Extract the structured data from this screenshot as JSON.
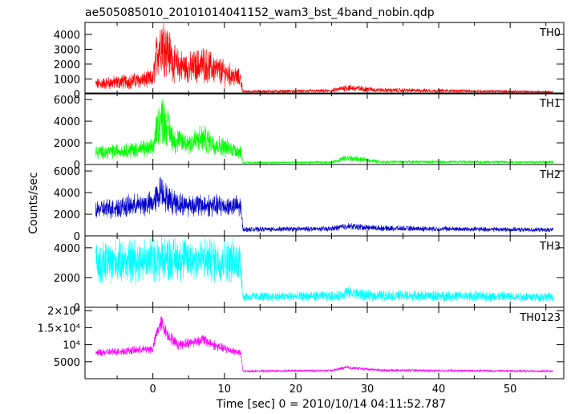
{
  "chart_data": {
    "type": "line",
    "title": "ae505085010_20101014041152_wam3_bst_4band_nobin.qdp",
    "xlabel": "Time [sec] 0 = 2010/10/14 04:11:52.787",
    "ylabel": "Counts/sec",
    "xlim": [
      -9.5,
      57.5
    ],
    "xticks": [
      0,
      10,
      20,
      30,
      40,
      50
    ],
    "xtick_labels": [
      "0",
      "10",
      "20",
      "30",
      "40",
      "50"
    ],
    "data_x_range": [
      -8,
      56
    ],
    "panels": [
      {
        "name": "TH0",
        "color": "#ff0000",
        "ylim": [
          0,
          4800
        ],
        "yticks": [
          0,
          1000,
          2000,
          3000,
          4000
        ],
        "ytick_labels": [
          "0",
          "1000",
          "2000",
          "3000",
          "4000"
        ],
        "profile": [
          [
            -8,
            650
          ],
          [
            0,
            1000
          ],
          [
            0.6,
            2800
          ],
          [
            1.2,
            3600
          ],
          [
            2.0,
            3000
          ],
          [
            3.0,
            2000
          ],
          [
            5.0,
            1700
          ],
          [
            7.0,
            2000
          ],
          [
            9.0,
            1600
          ],
          [
            12.3,
            1000
          ],
          [
            12.6,
            160
          ],
          [
            25,
            200
          ],
          [
            27,
            420
          ],
          [
            32,
            250
          ],
          [
            56,
            130
          ]
        ],
        "noise_fraction": 0.5
      },
      {
        "name": "TH1",
        "color": "#00ff00",
        "ylim": [
          0,
          6600
        ],
        "yticks": [
          0,
          2000,
          4000,
          6000
        ],
        "ytick_labels": [
          "0",
          "2000",
          "4000",
          "6000"
        ],
        "profile": [
          [
            -8,
            1100
          ],
          [
            0,
            1500
          ],
          [
            0.6,
            3500
          ],
          [
            1.2,
            4300
          ],
          [
            2.0,
            3500
          ],
          [
            3.0,
            2200
          ],
          [
            5.0,
            2000
          ],
          [
            7.0,
            2400
          ],
          [
            9.0,
            1800
          ],
          [
            12.3,
            1200
          ],
          [
            12.6,
            160
          ],
          [
            25,
            200
          ],
          [
            27,
            600
          ],
          [
            32,
            250
          ],
          [
            56,
            220
          ]
        ],
        "noise_fraction": 0.45
      },
      {
        "name": "TH2",
        "color": "#0000cc",
        "ylim": [
          0,
          6600
        ],
        "yticks": [
          0,
          2000,
          4000,
          6000
        ],
        "ytick_labels": [
          "0",
          "2000",
          "4000",
          "6000"
        ],
        "profile": [
          [
            -8,
            2400
          ],
          [
            0,
            3000
          ],
          [
            1.2,
            4300
          ],
          [
            2.0,
            3400
          ],
          [
            4.0,
            2900
          ],
          [
            12.3,
            2700
          ],
          [
            12.6,
            600
          ],
          [
            25,
            650
          ],
          [
            27,
            900
          ],
          [
            32,
            700
          ],
          [
            56,
            550
          ]
        ],
        "noise_fraction": 0.3
      },
      {
        "name": "TH3",
        "color": "#00ffff",
        "ylim": [
          0,
          4800
        ],
        "yticks": [
          0,
          2000,
          4000
        ],
        "ytick_labels": [
          "0",
          "2000",
          "4000"
        ],
        "profile": [
          [
            -8,
            3000
          ],
          [
            2.0,
            3300
          ],
          [
            12.3,
            3100
          ],
          [
            12.6,
            700
          ],
          [
            26,
            750
          ],
          [
            27,
            1000
          ],
          [
            30,
            800
          ],
          [
            56,
            700
          ]
        ],
        "noise_fraction": 0.38
      },
      {
        "name": "TH0123",
        "color": "#ff00ff",
        "ylim": [
          0,
          21000
        ],
        "yticks": [
          5000,
          10000,
          15000,
          20000
        ],
        "ytick_labels": [
          "5000",
          "10⁴",
          "1.5×10⁴",
          "2×10⁴"
        ],
        "profile": [
          [
            -8,
            7500
          ],
          [
            0,
            8800
          ],
          [
            0.6,
            14000
          ],
          [
            1.2,
            16500
          ],
          [
            2.0,
            13000
          ],
          [
            3.5,
            10000
          ],
          [
            5.0,
            10500
          ],
          [
            7.0,
            11500
          ],
          [
            9.0,
            9500
          ],
          [
            12.3,
            7500
          ],
          [
            12.6,
            2200
          ],
          [
            25,
            2400
          ],
          [
            27,
            3300
          ],
          [
            32,
            2500
          ],
          [
            56,
            2200
          ]
        ],
        "noise_fraction": 0.12
      }
    ]
  }
}
